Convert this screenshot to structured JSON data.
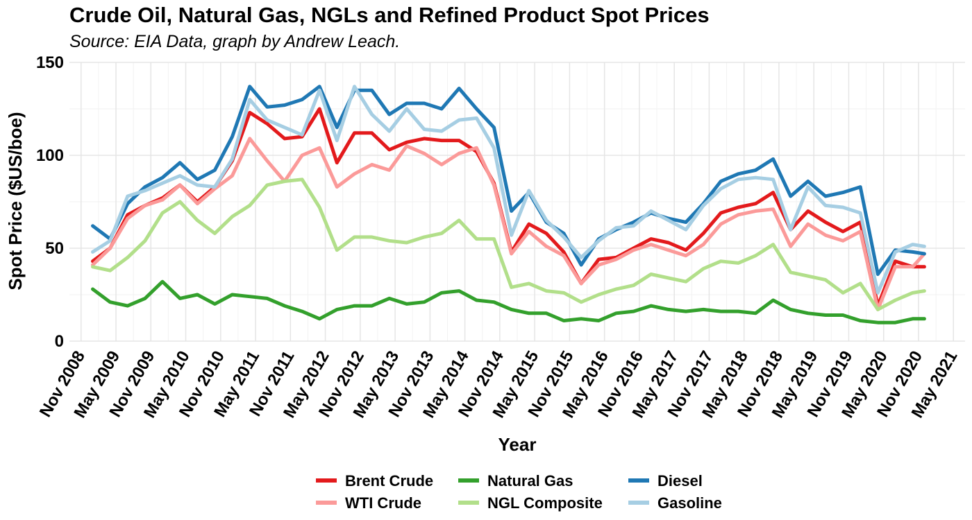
{
  "chart_data": {
    "type": "line",
    "title": "Crude Oil, Natural Gas, NGLs and Refined Product Spot Prices",
    "subtitle": "Source: EIA Data, graph by Andrew Leach.",
    "xlabel": "Year",
    "ylabel": "Spot Price ($US/boe)",
    "ylim": [
      0,
      150
    ],
    "yticks": [
      0,
      50,
      100,
      150
    ],
    "xlim": [
      "2008-09",
      "2021-07"
    ],
    "xticks": [
      "Nov 2008",
      "May 2009",
      "Nov 2009",
      "May 2010",
      "Nov 2010",
      "May 2011",
      "Nov 2011",
      "May 2012",
      "Nov 2012",
      "May 2013",
      "Nov 2013",
      "May 2014",
      "Nov 2014",
      "May 2015",
      "Nov 2015",
      "May 2016",
      "Nov 2016",
      "May 2017",
      "Nov 2017",
      "May 2018",
      "Nov 2018",
      "May 2019",
      "Nov 2019",
      "May 2020",
      "Nov 2020",
      "May 2021"
    ],
    "grid": true,
    "legend_position": "bottom",
    "series": [
      {
        "name": "Brent Crude",
        "color": "#e31a1c",
        "x": [
          "2009-01",
          "2009-04",
          "2009-07",
          "2009-10",
          "2010-01",
          "2010-04",
          "2010-07",
          "2010-10",
          "2011-01",
          "2011-04",
          "2011-07",
          "2011-10",
          "2012-01",
          "2012-04",
          "2012-07",
          "2012-10",
          "2013-01",
          "2013-04",
          "2013-07",
          "2013-10",
          "2014-01",
          "2014-04",
          "2014-07",
          "2014-10",
          "2015-01",
          "2015-04",
          "2015-07",
          "2015-10",
          "2016-01",
          "2016-04",
          "2016-07",
          "2016-10",
          "2017-01",
          "2017-04",
          "2017-07",
          "2017-10",
          "2018-01",
          "2018-04",
          "2018-07",
          "2018-10",
          "2019-01",
          "2019-04",
          "2019-07",
          "2019-10",
          "2020-01",
          "2020-04",
          "2020-07",
          "2020-10",
          "2020-12"
        ],
        "values": [
          43,
          50,
          68,
          73,
          77,
          84,
          75,
          83,
          97,
          123,
          117,
          109,
          110,
          125,
          96,
          112,
          112,
          103,
          107,
          109,
          108,
          108,
          102,
          85,
          48,
          63,
          58,
          48,
          31,
          44,
          45,
          50,
          55,
          53,
          49,
          58,
          69,
          72,
          74,
          80,
          60,
          70,
          64,
          59,
          64,
          19,
          43,
          40,
          40
        ]
      },
      {
        "name": "WTI Crude",
        "color": "#fb9a99",
        "x": [
          "2009-01",
          "2009-04",
          "2009-07",
          "2009-10",
          "2010-01",
          "2010-04",
          "2010-07",
          "2010-10",
          "2011-01",
          "2011-04",
          "2011-07",
          "2011-10",
          "2012-01",
          "2012-04",
          "2012-07",
          "2012-10",
          "2013-01",
          "2013-04",
          "2013-07",
          "2013-10",
          "2014-01",
          "2014-04",
          "2014-07",
          "2014-10",
          "2015-01",
          "2015-04",
          "2015-07",
          "2015-10",
          "2016-01",
          "2016-04",
          "2016-07",
          "2016-10",
          "2017-01",
          "2017-04",
          "2017-07",
          "2017-10",
          "2018-01",
          "2018-04",
          "2018-07",
          "2018-10",
          "2019-01",
          "2019-04",
          "2019-07",
          "2019-10",
          "2020-01",
          "2020-04",
          "2020-07",
          "2020-10",
          "2020-12"
        ],
        "values": [
          41,
          50,
          66,
          73,
          76,
          84,
          74,
          82,
          89,
          109,
          97,
          86,
          100,
          104,
          83,
          90,
          95,
          92,
          105,
          101,
          95,
          101,
          104,
          84,
          47,
          59,
          51,
          46,
          31,
          41,
          44,
          49,
          52,
          49,
          46,
          52,
          63,
          68,
          70,
          71,
          51,
          63,
          57,
          54,
          59,
          17,
          40,
          40,
          47
        ]
      },
      {
        "name": "Natural Gas",
        "color": "#33a02c",
        "x": [
          "2009-01",
          "2009-04",
          "2009-07",
          "2009-10",
          "2010-01",
          "2010-04",
          "2010-07",
          "2010-10",
          "2011-01",
          "2011-04",
          "2011-07",
          "2011-10",
          "2012-01",
          "2012-04",
          "2012-07",
          "2012-10",
          "2013-01",
          "2013-04",
          "2013-07",
          "2013-10",
          "2014-01",
          "2014-04",
          "2014-07",
          "2014-10",
          "2015-01",
          "2015-04",
          "2015-07",
          "2015-10",
          "2016-01",
          "2016-04",
          "2016-07",
          "2016-10",
          "2017-01",
          "2017-04",
          "2017-07",
          "2017-10",
          "2018-01",
          "2018-04",
          "2018-07",
          "2018-10",
          "2019-01",
          "2019-04",
          "2019-07",
          "2019-10",
          "2020-01",
          "2020-04",
          "2020-07",
          "2020-10",
          "2020-12"
        ],
        "values": [
          28,
          21,
          19,
          23,
          32,
          23,
          25,
          20,
          25,
          24,
          23,
          19,
          16,
          12,
          17,
          19,
          19,
          23,
          20,
          21,
          26,
          27,
          22,
          21,
          17,
          15,
          15,
          11,
          12,
          11,
          15,
          16,
          19,
          17,
          16,
          17,
          16,
          16,
          15,
          22,
          17,
          15,
          14,
          14,
          11,
          10,
          10,
          12,
          12
        ]
      },
      {
        "name": "NGL Composite",
        "color": "#b2df8a",
        "x": [
          "2009-01",
          "2009-04",
          "2009-07",
          "2009-10",
          "2010-01",
          "2010-04",
          "2010-07",
          "2010-10",
          "2011-01",
          "2011-04",
          "2011-07",
          "2011-10",
          "2012-01",
          "2012-04",
          "2012-07",
          "2012-10",
          "2013-01",
          "2013-04",
          "2013-07",
          "2013-10",
          "2014-01",
          "2014-04",
          "2014-07",
          "2014-10",
          "2015-01",
          "2015-04",
          "2015-07",
          "2015-10",
          "2016-01",
          "2016-04",
          "2016-07",
          "2016-10",
          "2017-01",
          "2017-04",
          "2017-07",
          "2017-10",
          "2018-01",
          "2018-04",
          "2018-07",
          "2018-10",
          "2019-01",
          "2019-04",
          "2019-07",
          "2019-10",
          "2020-01",
          "2020-04",
          "2020-07",
          "2020-10",
          "2020-12"
        ],
        "values": [
          40,
          38,
          45,
          54,
          69,
          75,
          65,
          58,
          67,
          73,
          84,
          86,
          87,
          72,
          49,
          56,
          56,
          54,
          53,
          56,
          58,
          65,
          55,
          55,
          29,
          31,
          27,
          26,
          21,
          25,
          28,
          30,
          36,
          34,
          32,
          39,
          43,
          42,
          46,
          52,
          37,
          35,
          33,
          26,
          31,
          17,
          22,
          26,
          27
        ]
      },
      {
        "name": "Diesel",
        "color": "#1f78b4",
        "x": [
          "2009-01",
          "2009-04",
          "2009-07",
          "2009-10",
          "2010-01",
          "2010-04",
          "2010-07",
          "2010-10",
          "2011-01",
          "2011-04",
          "2011-07",
          "2011-10",
          "2012-01",
          "2012-04",
          "2012-07",
          "2012-10",
          "2013-01",
          "2013-04",
          "2013-07",
          "2013-10",
          "2014-01",
          "2014-04",
          "2014-07",
          "2014-10",
          "2015-01",
          "2015-04",
          "2015-07",
          "2015-10",
          "2016-01",
          "2016-04",
          "2016-07",
          "2016-10",
          "2017-01",
          "2017-04",
          "2017-07",
          "2017-10",
          "2018-01",
          "2018-04",
          "2018-07",
          "2018-10",
          "2019-01",
          "2019-04",
          "2019-07",
          "2019-10",
          "2020-01",
          "2020-04",
          "2020-07",
          "2020-10",
          "2020-12"
        ],
        "values": [
          62,
          55,
          74,
          83,
          88,
          96,
          87,
          92,
          110,
          137,
          126,
          127,
          130,
          137,
          115,
          135,
          135,
          122,
          128,
          128,
          125,
          136,
          125,
          115,
          70,
          80,
          64,
          58,
          41,
          55,
          60,
          64,
          69,
          66,
          64,
          74,
          86,
          90,
          92,
          98,
          78,
          86,
          78,
          80,
          83,
          36,
          49,
          48,
          47
        ]
      },
      {
        "name": "Gasoline",
        "color": "#a6cee3",
        "x": [
          "2009-01",
          "2009-04",
          "2009-07",
          "2009-10",
          "2010-01",
          "2010-04",
          "2010-07",
          "2010-10",
          "2011-01",
          "2011-04",
          "2011-07",
          "2011-10",
          "2012-01",
          "2012-04",
          "2012-07",
          "2012-10",
          "2013-01",
          "2013-04",
          "2013-07",
          "2013-10",
          "2014-01",
          "2014-04",
          "2014-07",
          "2014-10",
          "2015-01",
          "2015-04",
          "2015-07",
          "2015-10",
          "2016-01",
          "2016-04",
          "2016-07",
          "2016-10",
          "2017-01",
          "2017-04",
          "2017-07",
          "2017-10",
          "2018-01",
          "2018-04",
          "2018-07",
          "2018-10",
          "2019-01",
          "2019-04",
          "2019-07",
          "2019-10",
          "2020-01",
          "2020-04",
          "2020-07",
          "2020-10",
          "2020-12"
        ],
        "values": [
          48,
          54,
          78,
          81,
          85,
          89,
          84,
          83,
          98,
          130,
          119,
          115,
          111,
          135,
          108,
          137,
          122,
          113,
          125,
          114,
          113,
          119,
          120,
          104,
          57,
          81,
          65,
          56,
          45,
          54,
          61,
          62,
          70,
          65,
          60,
          73,
          82,
          87,
          88,
          87,
          60,
          83,
          73,
          72,
          69,
          26,
          48,
          52,
          51
        ]
      }
    ]
  }
}
